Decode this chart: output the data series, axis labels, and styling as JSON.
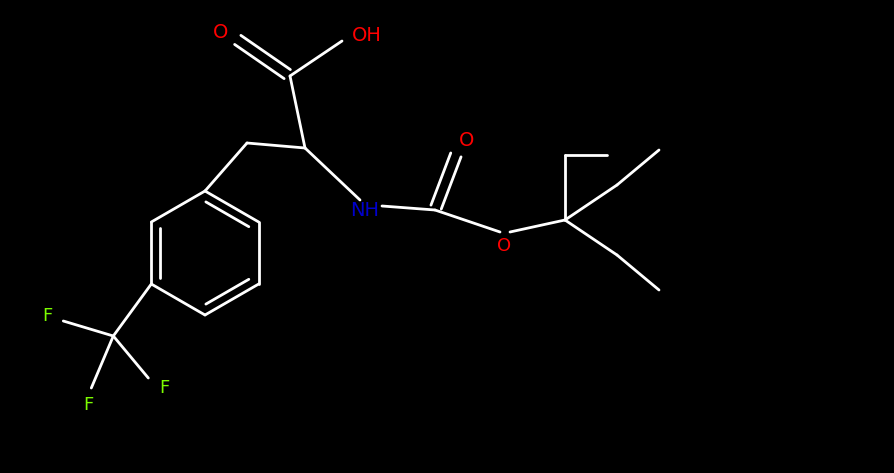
{
  "bg_color": "#000000",
  "bond_color": "#ffffff",
  "atom_colors": {
    "O": "#ff0000",
    "N": "#0000cd",
    "F": "#7cfc00",
    "C": "#ffffff",
    "H": "#ffffff"
  },
  "figsize": [
    8.95,
    4.73
  ],
  "dpi": 100,
  "lw": 2.0,
  "fs": 14
}
